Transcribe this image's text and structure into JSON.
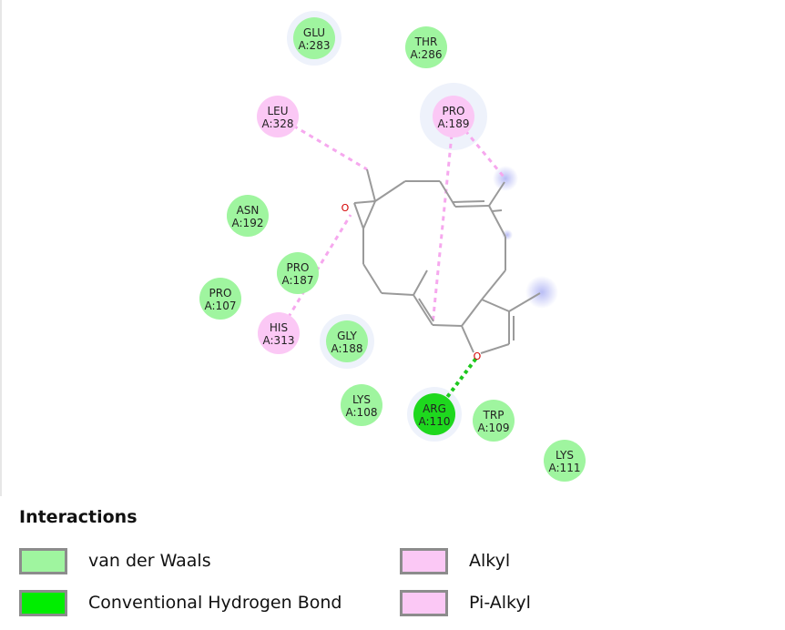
{
  "diagram": {
    "residues": [
      {
        "name": "GLU",
        "id": "A:283",
        "type": "vdw",
        "halo": true
      },
      {
        "name": "THR",
        "id": "A:286",
        "type": "vdw",
        "halo": false
      },
      {
        "name": "LEU",
        "id": "A:328",
        "type": "alkyl",
        "halo": false
      },
      {
        "name": "PRO",
        "id": "A:189",
        "type": "alkyl",
        "halo": true
      },
      {
        "name": "ASN",
        "id": "A:192",
        "type": "vdw",
        "halo": false
      },
      {
        "name": "PRO",
        "id": "A:187",
        "type": "vdw",
        "halo": false
      },
      {
        "name": "PRO",
        "id": "A:107",
        "type": "vdw",
        "halo": false
      },
      {
        "name": "HIS",
        "id": "A:313",
        "type": "alkyl",
        "halo": false
      },
      {
        "name": "GLY",
        "id": "A:188",
        "type": "vdw",
        "halo": true
      },
      {
        "name": "LYS",
        "id": "A:108",
        "type": "vdw",
        "halo": false
      },
      {
        "name": "ARG",
        "id": "A:110",
        "type": "hbond",
        "halo": true
      },
      {
        "name": "TRP",
        "id": "A:109",
        "type": "vdw",
        "halo": false
      },
      {
        "name": "LYS",
        "id": "A:111",
        "type": "vdw",
        "halo": false
      }
    ],
    "atom_labels": [
      "O",
      "O"
    ],
    "colors": {
      "vdw": "#9ff59f",
      "hbond": "#1ed81e",
      "alkyl": "#fbc8f5",
      "alkyl_line": "#f6a8ee",
      "hbond_line": "#1ec81e",
      "bond": "#9a9a9a",
      "oxygen": "#d40000",
      "halo": "#eef2fb",
      "atom_halo": "#b9bdf5"
    }
  },
  "legend": {
    "title": "Interactions",
    "items": [
      {
        "label": "van der Waals",
        "color": "#9ff59f"
      },
      {
        "label": "Alkyl",
        "color": "#fbc8f5"
      },
      {
        "label": "Conventional Hydrogen Bond",
        "color": "#00ee00"
      },
      {
        "label": "Pi-Alkyl",
        "color": "#fbc8f5"
      }
    ]
  }
}
